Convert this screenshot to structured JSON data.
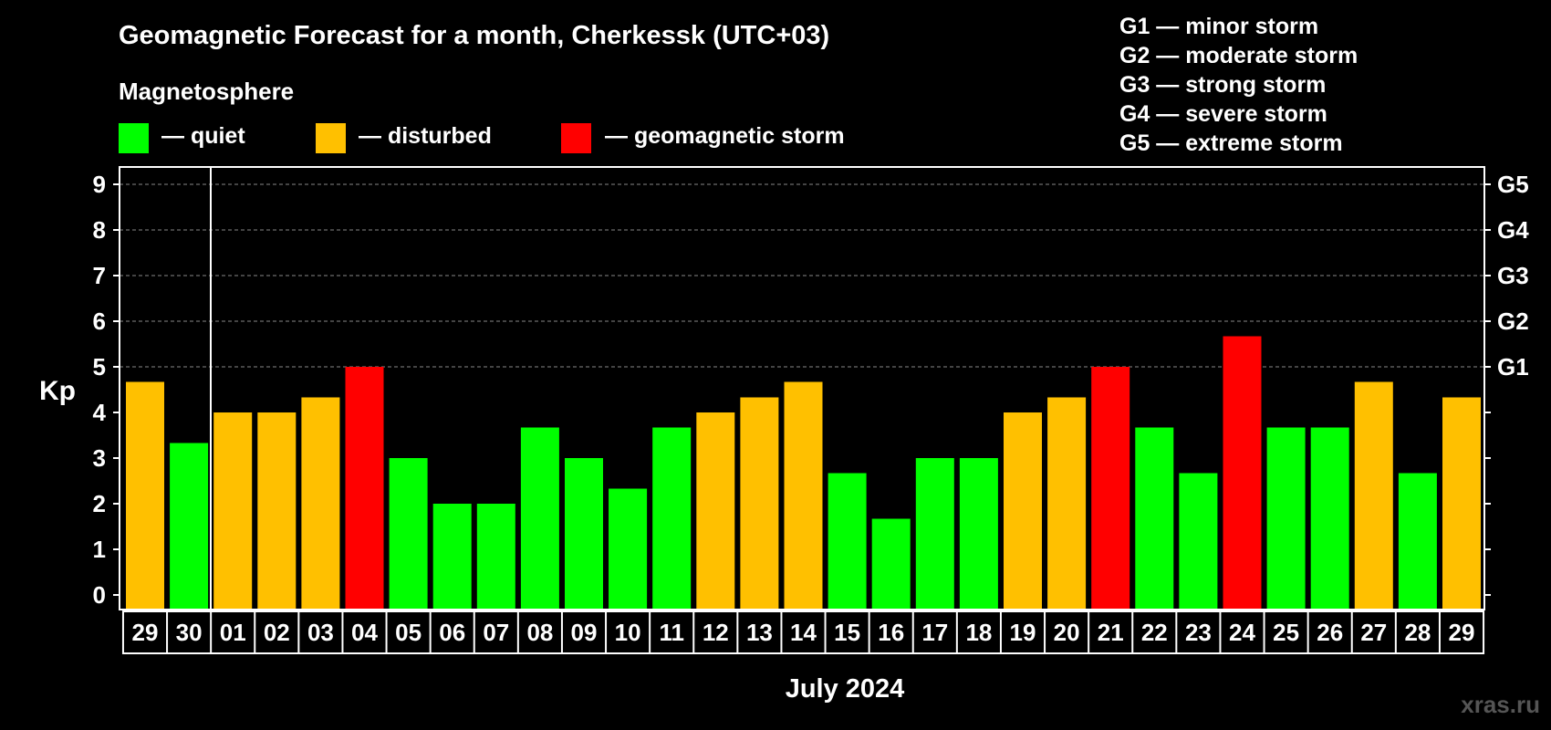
{
  "chart_data": {
    "type": "bar",
    "title": "Geomagnetic Forecast for a month, Cherkessk (UTC+03)",
    "subtitle": "Magnetosphere",
    "legend": [
      {
        "label": "— quiet",
        "color": "#00ff00"
      },
      {
        "label": "— disturbed",
        "color": "#ffc000"
      },
      {
        "label": "— geomagnetic storm",
        "color": "#ff0000"
      }
    ],
    "storm_scale": [
      "G1 — minor storm",
      "G2 — moderate storm",
      "G3 — strong storm",
      "G4 — severe storm",
      "G5 — extreme storm"
    ],
    "ylabel": "Kp",
    "xlabel": "July 2024",
    "ylim": [
      0,
      9
    ],
    "yticks": [
      0,
      1,
      2,
      3,
      4,
      5,
      6,
      7,
      8,
      9
    ],
    "right_ticks": [
      {
        "value": 5,
        "label": "G1"
      },
      {
        "value": 6,
        "label": "G2"
      },
      {
        "value": 7,
        "label": "G3"
      },
      {
        "value": 8,
        "label": "G4"
      },
      {
        "value": 9,
        "label": "G5"
      }
    ],
    "categories": [
      "29",
      "30",
      "01",
      "02",
      "03",
      "04",
      "05",
      "06",
      "07",
      "08",
      "09",
      "10",
      "11",
      "12",
      "13",
      "14",
      "15",
      "16",
      "17",
      "18",
      "19",
      "20",
      "21",
      "22",
      "23",
      "24",
      "25",
      "26",
      "27",
      "28",
      "29"
    ],
    "values": [
      4.67,
      3.33,
      4,
      4,
      4.33,
      5,
      3,
      2,
      2,
      3.67,
      3,
      2.33,
      3.67,
      4,
      4.33,
      4.67,
      2.67,
      1.67,
      3,
      3,
      4,
      4.33,
      5,
      3.67,
      2.67,
      5.67,
      3.67,
      3.67,
      4.67,
      2.67,
      4.33
    ],
    "colors": {
      "quiet": "#00ff00",
      "disturbed": "#ffc000",
      "storm": "#ff0000"
    },
    "grid": "dashed above Kp 5"
  },
  "watermark": "xras.ru"
}
